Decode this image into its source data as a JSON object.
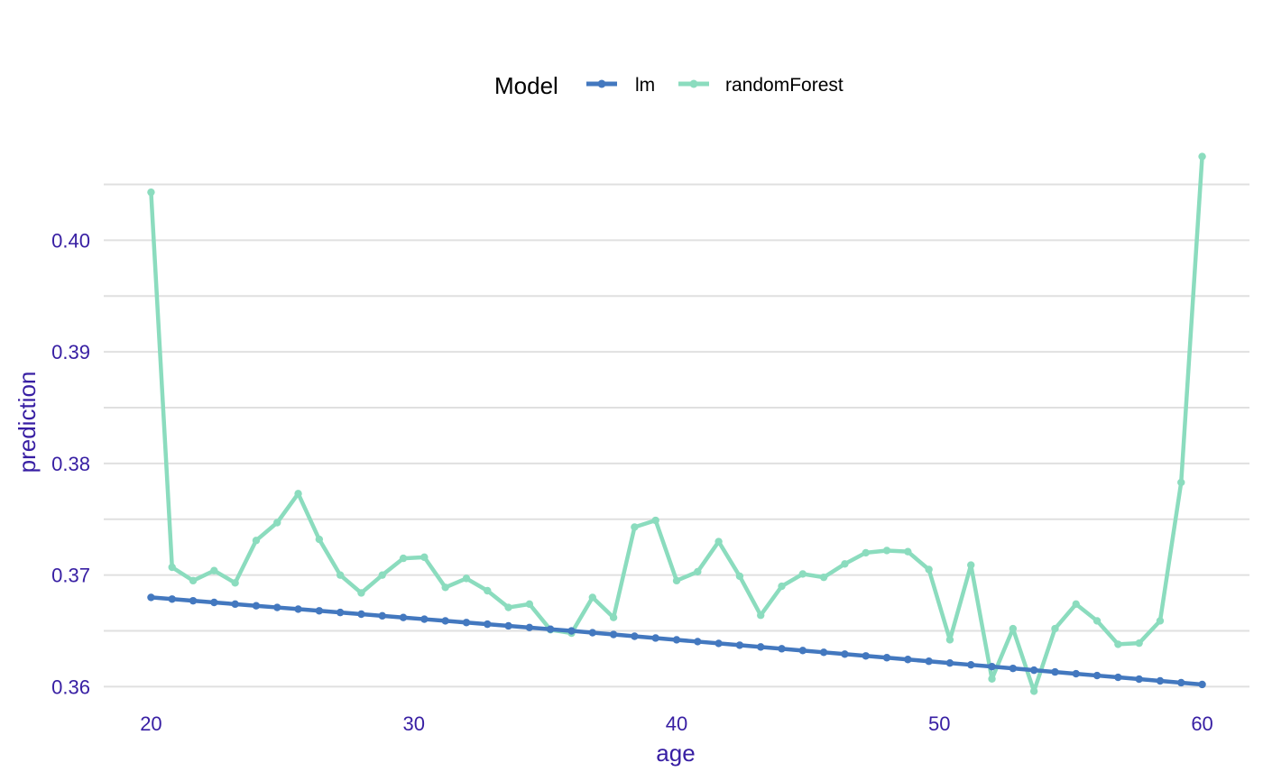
{
  "chart_data": {
    "type": "line",
    "xlabel": "age",
    "ylabel": "prediction",
    "xlim": [
      18.2,
      61.8
    ],
    "ylim": [
      0.3585,
      0.409
    ],
    "x_ticks": [
      20,
      30,
      40,
      50,
      60
    ],
    "x_tick_labels": [
      "20",
      "30",
      "40",
      "50",
      "60"
    ],
    "y_ticks": [
      0.36,
      0.37,
      0.38,
      0.39,
      0.4
    ],
    "y_tick_labels": [
      "0.36",
      "0.37",
      "0.38",
      "0.39",
      "0.40"
    ],
    "y_minor_ticks": [
      0.365,
      0.375,
      0.385,
      0.395,
      0.405
    ],
    "grid": true,
    "legend": {
      "title": "Model",
      "position": "top",
      "entries": [
        "lm",
        "randomForest"
      ]
    },
    "x": [
      20.0,
      20.8,
      21.6,
      22.4,
      23.2,
      24.0,
      24.8,
      25.6,
      26.4,
      27.2,
      28.0,
      28.8,
      29.6,
      30.4,
      31.2,
      32.0,
      32.8,
      33.6,
      34.4,
      35.2,
      36.0,
      36.8,
      37.6,
      38.4,
      39.2,
      40.0,
      40.8,
      41.6,
      42.4,
      43.2,
      44.0,
      44.8,
      45.6,
      46.4,
      47.2,
      48.0,
      48.8,
      49.6,
      50.4,
      51.2,
      52.0,
      52.8,
      53.6,
      54.4,
      55.2,
      56.0,
      56.8,
      57.6,
      58.4,
      59.2,
      60.0
    ],
    "series": [
      {
        "name": "lm",
        "color": "#4378bf",
        "values": [
          0.368,
          0.36785,
          0.3677,
          0.36755,
          0.3674,
          0.36725,
          0.3671,
          0.36695,
          0.3668,
          0.36665,
          0.3665,
          0.36635,
          0.3662,
          0.36605,
          0.3659,
          0.36575,
          0.3656,
          0.36545,
          0.3653,
          0.36515,
          0.365,
          0.36484,
          0.36468,
          0.36452,
          0.36436,
          0.3642,
          0.36404,
          0.36388,
          0.36372,
          0.36356,
          0.3634,
          0.36324,
          0.36308,
          0.36292,
          0.36276,
          0.3626,
          0.36244,
          0.36228,
          0.36212,
          0.36196,
          0.3618,
          0.36164,
          0.36148,
          0.36132,
          0.36116,
          0.361,
          0.36084,
          0.36068,
          0.36052,
          0.36036,
          0.3602
        ]
      },
      {
        "name": "randomForest",
        "color": "#8bdcbe",
        "values": [
          0.4043,
          0.3707,
          0.3695,
          0.3704,
          0.3693,
          0.3731,
          0.3747,
          0.3773,
          0.3732,
          0.37,
          0.3684,
          0.37,
          0.3715,
          0.3716,
          0.3689,
          0.3697,
          0.3686,
          0.3671,
          0.3674,
          0.3651,
          0.3648,
          0.368,
          0.3662,
          0.3743,
          0.3749,
          0.3695,
          0.3703,
          0.373,
          0.3699,
          0.3664,
          0.369,
          0.3701,
          0.3698,
          0.371,
          0.372,
          0.3722,
          0.3721,
          0.3705,
          0.3642,
          0.3709,
          0.3607,
          0.3652,
          0.3596,
          0.3652,
          0.3674,
          0.3659,
          0.3638,
          0.3639,
          0.3659,
          0.3783,
          0.4075
        ]
      }
    ]
  }
}
